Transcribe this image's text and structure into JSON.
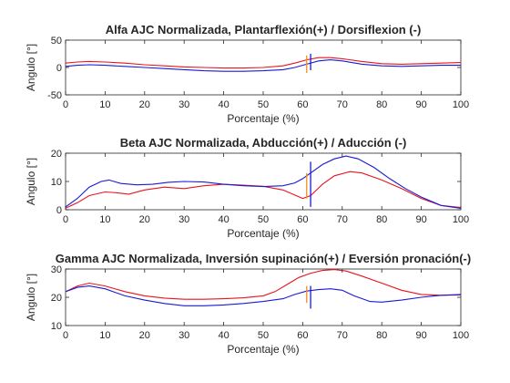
{
  "chart_data": [
    {
      "type": "line",
      "title": "Alfa AJC Normalizada, Plantarflexión(+) / Dorsiflexion (-)",
      "xlabel": "Porcentaje (%)",
      "ylabel": "Angulo [°]",
      "xlim": [
        0,
        100
      ],
      "ylim": [
        -50,
        50
      ],
      "xticks": [
        0,
        10,
        20,
        30,
        40,
        50,
        60,
        70,
        80,
        90,
        100
      ],
      "yticks": [
        -50,
        0,
        50
      ],
      "grid": false,
      "colors": {
        "red": "#e8141e",
        "blue": "#1a1ad6"
      },
      "series": [
        {
          "color": "#e8141e",
          "x": [
            0,
            3,
            6,
            10,
            15,
            20,
            25,
            30,
            35,
            40,
            45,
            50,
            55,
            58,
            61,
            64,
            67,
            70,
            75,
            80,
            85,
            90,
            95,
            100
          ],
          "values": [
            8,
            10,
            11,
            10,
            8,
            5,
            3,
            1,
            0,
            -1,
            -1,
            0,
            3,
            8,
            14,
            18,
            18,
            16,
            11,
            7,
            6,
            7,
            8,
            9
          ]
        },
        {
          "color": "#1a1ad6",
          "x": [
            0,
            3,
            6,
            10,
            15,
            20,
            25,
            30,
            35,
            40,
            45,
            50,
            55,
            58,
            61,
            64,
            67,
            70,
            75,
            80,
            85,
            90,
            95,
            100
          ],
          "values": [
            2,
            4,
            5,
            4,
            2,
            0,
            -2,
            -4,
            -6,
            -7,
            -7,
            -6,
            -4,
            0,
            6,
            12,
            14,
            12,
            6,
            3,
            2,
            3,
            4,
            4
          ]
        }
      ],
      "markers": [
        {
          "x": 61,
          "y1": -10,
          "y2": 22,
          "color": "#ff8c1a"
        },
        {
          "x": 62,
          "y1": -5,
          "y2": 25,
          "color": "#1a1ad6"
        }
      ]
    },
    {
      "type": "line",
      "title": "Beta AJC Normalizada, Abducción(+) / Aducción (-)",
      "xlabel": "Porcentaje (%)",
      "ylabel": "Angulo [°]",
      "xlim": [
        0,
        100
      ],
      "ylim": [
        0,
        20
      ],
      "xticks": [
        0,
        10,
        20,
        30,
        40,
        50,
        60,
        70,
        80,
        90,
        100
      ],
      "yticks": [
        0,
        10,
        20
      ],
      "grid": false,
      "colors": {
        "red": "#e8141e",
        "blue": "#1a1ad6"
      },
      "series": [
        {
          "color": "#e8141e",
          "x": [
            0,
            3,
            6,
            10,
            13,
            16,
            20,
            25,
            30,
            35,
            40,
            45,
            50,
            55,
            58,
            60,
            62,
            65,
            68,
            72,
            75,
            80,
            85,
            90,
            95,
            100
          ],
          "values": [
            0.5,
            2.5,
            5,
            6.3,
            6,
            5.5,
            7,
            8,
            7.5,
            8.5,
            9,
            8.7,
            8.3,
            7,
            5.2,
            4,
            5,
            9,
            12,
            13.5,
            13,
            10.5,
            7.5,
            4,
            1.5,
            0.8
          ]
        },
        {
          "color": "#1a1ad6",
          "x": [
            0,
            3,
            6,
            9,
            11,
            14,
            18,
            22,
            26,
            30,
            35,
            40,
            45,
            50,
            55,
            58,
            60,
            62,
            65,
            68,
            71,
            74,
            78,
            82,
            86,
            90,
            95,
            100
          ],
          "values": [
            1,
            4,
            8,
            10,
            10.5,
            9.3,
            8.8,
            9,
            9.7,
            10,
            9.8,
            9,
            8.5,
            8.2,
            8.5,
            9.5,
            11,
            13,
            16,
            18,
            19,
            18,
            15,
            11,
            7.5,
            4.5,
            1.5,
            0.5
          ]
        }
      ],
      "markers": [
        {
          "x": 61,
          "y1": 4,
          "y2": 13,
          "color": "#ff8c1a"
        },
        {
          "x": 62,
          "y1": 1,
          "y2": 17,
          "color": "#1a1ad6"
        }
      ]
    },
    {
      "type": "line",
      "title": "Gamma AJC Normalizada, Inversión supinación(+) / Eversión pronación(-)",
      "xlabel": "Porcentaje (%)",
      "ylabel": "Angulo [°]",
      "xlim": [
        0,
        100
      ],
      "ylim": [
        10,
        30
      ],
      "xticks": [
        0,
        10,
        20,
        30,
        40,
        50,
        60,
        70,
        80,
        90,
        100
      ],
      "yticks": [
        10,
        20,
        30
      ],
      "grid": false,
      "colors": {
        "red": "#e8141e",
        "blue": "#1a1ad6"
      },
      "series": [
        {
          "color": "#e8141e",
          "x": [
            0,
            3,
            6,
            10,
            15,
            20,
            25,
            30,
            35,
            40,
            45,
            50,
            53,
            56,
            59,
            62,
            65,
            68,
            71,
            75,
            80,
            85,
            90,
            95,
            100
          ],
          "values": [
            22,
            24,
            25,
            24,
            22,
            20.5,
            19.7,
            19.3,
            19.3,
            19.5,
            19.8,
            20.5,
            22,
            24.5,
            27,
            28.5,
            29.5,
            29.8,
            29.3,
            27.5,
            25,
            22.5,
            21,
            20.7,
            20.8
          ]
        },
        {
          "color": "#1a1ad6",
          "x": [
            0,
            3,
            6,
            10,
            15,
            20,
            25,
            30,
            35,
            40,
            45,
            50,
            55,
            58,
            61,
            64,
            67,
            70,
            73,
            77,
            80,
            85,
            90,
            95,
            100
          ],
          "values": [
            22,
            23.5,
            24,
            23,
            20.5,
            19,
            17.8,
            17,
            17,
            17.3,
            17.8,
            18.5,
            19.5,
            21,
            22.2,
            22.7,
            23,
            22.5,
            20.5,
            18.5,
            18.3,
            19,
            20,
            20.7,
            21
          ]
        }
      ],
      "markers": [
        {
          "x": 61,
          "y1": 18,
          "y2": 24,
          "color": "#ff8c1a"
        },
        {
          "x": 62,
          "y1": 16,
          "y2": 24,
          "color": "#1a1ad6"
        }
      ]
    }
  ]
}
